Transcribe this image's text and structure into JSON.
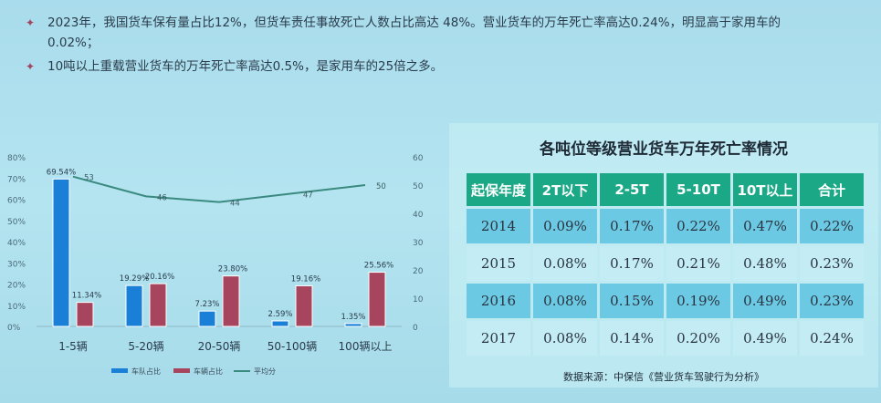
{
  "bullets": [
    {
      "text": "2023年，我国货车保有量占比12%，但货车责任事故死亡人数占比高达 48%。营业货车的万年死亡率高达0.24%，明显高于家用车的0.02%；"
    },
    {
      "text": "10吨以上重载营业货车的万年死亡率高达0.5%，是家用车的25倍之多。"
    }
  ],
  "chart_data": {
    "type": "bar",
    "categories": [
      "1-5辆",
      "5-20辆",
      "20-50辆",
      "50-100辆",
      "100辆以上"
    ],
    "series": [
      {
        "name": "车队占比",
        "type": "bar",
        "axis": "left",
        "values": [
          69.54,
          19.29,
          7.23,
          2.59,
          1.35
        ],
        "labels": [
          "69.54%",
          "19.29%",
          "7.23%",
          "2.59%",
          "1.35%"
        ],
        "color": "#1a7fd6"
      },
      {
        "name": "车辆占比",
        "type": "bar",
        "axis": "left",
        "values": [
          11.34,
          20.16,
          23.8,
          19.16,
          25.56
        ],
        "labels": [
          "11.34%",
          "20.16%",
          "23.80%",
          "19.16%",
          "25.56%"
        ],
        "color": "#a8455e"
      },
      {
        "name": "平均分",
        "type": "line",
        "axis": "right",
        "values": [
          53,
          46,
          44,
          47,
          50
        ],
        "labels": [
          "53",
          "46",
          "44",
          "47",
          "50"
        ],
        "color": "#3a8a80"
      }
    ],
    "y_left": {
      "min": 0,
      "max": 80,
      "ticks": [
        "0%",
        "10%",
        "20%",
        "30%",
        "40%",
        "50%",
        "60%",
        "70%",
        "80%"
      ]
    },
    "y_right": {
      "min": 0,
      "max": 60,
      "ticks": [
        "0",
        "10",
        "20",
        "30",
        "40",
        "50",
        "60"
      ]
    },
    "legend": "bottom"
  },
  "table": {
    "title": "各吨位等级营业货车万年死亡率情况",
    "headers": [
      "起保年度",
      "2T以下",
      "2-5T",
      "5-10T",
      "10T以上",
      "合计"
    ],
    "rows": [
      [
        "2014",
        "0.09%",
        "0.17%",
        "0.22%",
        "0.47%",
        "0.22%"
      ],
      [
        "2015",
        "0.08%",
        "0.17%",
        "0.21%",
        "0.48%",
        "0.23%"
      ],
      [
        "2016",
        "0.08%",
        "0.15%",
        "0.19%",
        "0.49%",
        "0.23%"
      ],
      [
        "2017",
        "0.08%",
        "0.14%",
        "0.20%",
        "0.49%",
        "0.24%"
      ]
    ],
    "source": "数据来源：中保信《营业货车驾驶行为分析》"
  }
}
